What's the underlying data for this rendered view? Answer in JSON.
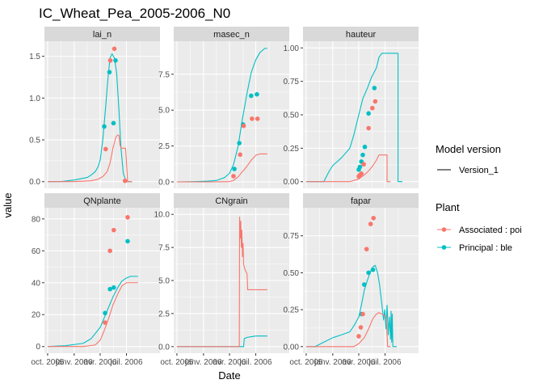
{
  "chart_data": {
    "type": "line",
    "title": "IC_Wheat_Pea_2005-2006_N0",
    "xlabel": "Date",
    "ylabel": "value",
    "x_tick_labels": [
      "oct. 2005",
      "janv. 2006",
      "avr. 2006",
      "juil. 2006"
    ],
    "xlim": [
      "2005-09-20",
      "2006-10-25"
    ],
    "x_ticks": [
      "2005-10-01",
      "2006-01-01",
      "2006-04-01",
      "2006-07-01"
    ],
    "colors": {
      "associated": "#F8766D",
      "principal": "#00BFC4",
      "panel": "#EBEBEB",
      "strip": "#D9D9D9"
    },
    "legend": {
      "position": "right",
      "model_version": {
        "title": "Model version",
        "items": [
          "Version_1"
        ]
      },
      "plant": {
        "title": "Plant",
        "items": [
          "Associated : poi",
          "Principal : ble"
        ]
      }
    },
    "panels": [
      {
        "name": "lai_n",
        "ylim": [
          -0.08,
          1.68
        ],
        "yticks": [
          0.0,
          0.5,
          1.0,
          1.5
        ],
        "ytick_labels": [
          "0.0",
          "0.5",
          "1.0",
          "1.5"
        ],
        "series": [
          {
            "kind": "line",
            "plant": "Principal : ble",
            "x": [
              "2005-10-01",
              "2005-11-15",
              "2006-01-01",
              "2006-02-15",
              "2006-03-01",
              "2006-03-15",
              "2006-03-25",
              "2006-04-01",
              "2006-04-10",
              "2006-04-20",
              "2006-04-27",
              "2006-05-05",
              "2006-05-12",
              "2006-05-20",
              "2006-05-28",
              "2006-06-05",
              "2006-06-12",
              "2006-06-20",
              "2006-06-30",
              "2006-07-20"
            ],
            "y": [
              0,
              0,
              0.02,
              0.05,
              0.08,
              0.12,
              0.18,
              0.26,
              0.5,
              0.9,
              1.2,
              1.48,
              1.53,
              1.48,
              1.3,
              0.85,
              0.4,
              0.1,
              0,
              0
            ]
          },
          {
            "kind": "line",
            "plant": "Associated : poi",
            "x": [
              "2005-10-01",
              "2006-01-01",
              "2006-03-01",
              "2006-03-25",
              "2006-04-10",
              "2006-04-25",
              "2006-05-05",
              "2006-05-15",
              "2006-05-25",
              "2006-06-01",
              "2006-06-05",
              "2006-06-08",
              "2006-06-12",
              "2006-06-20",
              "2006-06-28",
              "2006-07-05",
              "2006-07-20"
            ],
            "y": [
              0,
              0,
              0.01,
              0.03,
              0.06,
              0.12,
              0.22,
              0.4,
              0.53,
              0.56,
              0.55,
              0.45,
              0.4,
              0.4,
              0.4,
              0.0,
              0
            ]
          },
          {
            "kind": "points",
            "plant": "Principal : ble",
            "x": [
              "2006-04-15",
              "2006-05-03",
              "2006-05-17",
              "2006-05-24"
            ],
            "y": [
              0.66,
              1.31,
              0.7,
              1.45
            ]
          },
          {
            "kind": "points",
            "plant": "Associated : poi",
            "x": [
              "2006-04-20",
              "2006-05-06",
              "2006-05-20",
              "2006-06-26"
            ],
            "y": [
              0.39,
              1.45,
              1.59,
              0.01
            ]
          }
        ]
      },
      {
        "name": "masec_n",
        "ylim": [
          -0.45,
          9.8
        ],
        "yticks": [
          0.0,
          2.5,
          5.0,
          7.5
        ],
        "ytick_labels": [
          "0.0",
          "2.5",
          "5.0",
          "7.5"
        ],
        "series": [
          {
            "kind": "line",
            "plant": "Principal : ble",
            "x": [
              "2005-10-01",
              "2005-12-01",
              "2006-01-15",
              "2006-02-15",
              "2006-03-15",
              "2006-04-01",
              "2006-04-15",
              "2006-05-01",
              "2006-05-15",
              "2006-06-01",
              "2006-06-15",
              "2006-07-01",
              "2006-07-15",
              "2006-08-01",
              "2006-08-10"
            ],
            "y": [
              0,
              0.02,
              0.05,
              0.1,
              0.3,
              0.6,
              1.2,
              2.5,
              4.3,
              6.2,
              7.6,
              8.5,
              9.0,
              9.3,
              9.3
            ]
          },
          {
            "kind": "line",
            "plant": "Associated : poi",
            "x": [
              "2005-10-01",
              "2006-02-01",
              "2006-04-01",
              "2006-04-15",
              "2006-05-01",
              "2006-05-15",
              "2006-06-01",
              "2006-06-15",
              "2006-07-01",
              "2006-07-15",
              "2006-08-10"
            ],
            "y": [
              0,
              0,
              0.02,
              0.1,
              0.35,
              0.7,
              1.1,
              1.5,
              1.85,
              1.95,
              1.95
            ]
          },
          {
            "kind": "points",
            "plant": "Principal : ble",
            "x": [
              "2006-04-18",
              "2006-05-05",
              "2006-05-18",
              "2006-06-15",
              "2006-07-05"
            ],
            "y": [
              0.9,
              2.7,
              4.0,
              6.0,
              6.1
            ]
          },
          {
            "kind": "points",
            "plant": "Associated : poi",
            "x": [
              "2006-04-15",
              "2006-05-08",
              "2006-05-20",
              "2006-06-18",
              "2006-07-07"
            ],
            "y": [
              0.4,
              1.9,
              3.9,
              4.4,
              4.4
            ]
          }
        ]
      },
      {
        "name": "hauteur",
        "ylim": [
          -0.05,
          1.05
        ],
        "yticks": [
          0.0,
          0.25,
          0.5,
          0.75,
          1.0
        ],
        "ytick_labels": [
          "0.00",
          "0.25",
          "0.50",
          "0.75",
          "1.00"
        ],
        "series": [
          {
            "kind": "line",
            "plant": "Principal : ble",
            "x": [
              "2005-10-01",
              "2005-12-01",
              "2005-12-20",
              "2006-01-01",
              "2006-02-01",
              "2006-03-01",
              "2006-03-15",
              "2006-04-01",
              "2006-04-15",
              "2006-05-01",
              "2006-05-15",
              "2006-06-01",
              "2006-06-10",
              "2006-06-20",
              "2006-07-01",
              "2006-07-15",
              "2006-08-15",
              "2006-08-15",
              "2006-08-30"
            ],
            "y": [
              0,
              0,
              0.08,
              0.12,
              0.18,
              0.25,
              0.35,
              0.5,
              0.62,
              0.7,
              0.78,
              0.85,
              0.93,
              0.96,
              0.96,
              0.96,
              0.96,
              0,
              0
            ]
          },
          {
            "kind": "line",
            "plant": "Associated : poi",
            "x": [
              "2005-10-01",
              "2006-03-01",
              "2006-04-01",
              "2006-04-20",
              "2006-05-05",
              "2006-05-20",
              "2006-06-01",
              "2006-06-10",
              "2006-06-20",
              "2006-07-01",
              "2006-07-08",
              "2006-07-08",
              "2006-07-20"
            ],
            "y": [
              0,
              0,
              0.02,
              0.05,
              0.08,
              0.12,
              0.16,
              0.2,
              0.2,
              0.2,
              0.2,
              0,
              0
            ]
          },
          {
            "kind": "points",
            "plant": "Principal : ble",
            "x": [
              "2006-04-01",
              "2006-04-05",
              "2006-04-10",
              "2006-04-15",
              "2006-04-22",
              "2006-05-05",
              "2006-05-25"
            ],
            "y": [
              0.09,
              0.11,
              0.15,
              0.2,
              0.26,
              0.51,
              0.7
            ]
          },
          {
            "kind": "points",
            "plant": "Associated : poi",
            "x": [
              "2006-04-01",
              "2006-04-05",
              "2006-04-10",
              "2006-04-18",
              "2006-05-05",
              "2006-05-18",
              "2006-05-28"
            ],
            "y": [
              0.04,
              0.05,
              0.06,
              0.13,
              0.4,
              0.55,
              0.6
            ]
          }
        ]
      },
      {
        "name": "QNplante",
        "ylim": [
          -4.2,
          87
        ],
        "yticks": [
          0,
          20,
          40,
          60,
          80
        ],
        "ytick_labels": [
          "0",
          "20",
          "40",
          "60",
          "80"
        ],
        "series": [
          {
            "kind": "line",
            "plant": "Principal : ble",
            "x": [
              "2005-10-01",
              "2005-12-01",
              "2006-02-01",
              "2006-03-01",
              "2006-04-01",
              "2006-04-15",
              "2006-05-01",
              "2006-05-15",
              "2006-06-01",
              "2006-06-15",
              "2006-07-01",
              "2006-07-15",
              "2006-08-10"
            ],
            "y": [
              0,
              0.5,
              2,
              5,
              12,
              18,
              25,
              31,
              37,
              41,
              43,
              44,
              44
            ]
          },
          {
            "kind": "line",
            "plant": "Associated : poi",
            "x": [
              "2005-10-01",
              "2006-02-01",
              "2006-03-15",
              "2006-04-01",
              "2006-04-15",
              "2006-05-01",
              "2006-05-15",
              "2006-06-01",
              "2006-06-15",
              "2006-07-01",
              "2006-07-15",
              "2006-08-10"
            ],
            "y": [
              0,
              0,
              1,
              4,
              10,
              18,
              26,
              33,
              38,
              40,
              40,
              40
            ]
          },
          {
            "kind": "points",
            "plant": "Principal : ble",
            "x": [
              "2006-04-18",
              "2006-05-05",
              "2006-05-18",
              "2006-07-05"
            ],
            "y": [
              21,
              36,
              37,
              66
            ]
          },
          {
            "kind": "points",
            "plant": "Associated : poi",
            "x": [
              "2006-04-18",
              "2006-05-05",
              "2006-05-18",
              "2006-07-05"
            ],
            "y": [
              15,
              60,
              73,
              81
            ]
          }
        ]
      },
      {
        "name": "CNgrain",
        "ylim": [
          -0.5,
          10.5
        ],
        "yticks": [
          0.0,
          2.5,
          5.0,
          7.5,
          10.0
        ],
        "ytick_labels": [
          "0.0",
          "2.5",
          "5.0",
          "7.5",
          "10.0"
        ],
        "series": [
          {
            "kind": "line",
            "plant": "Principal : ble",
            "x": [
              "2005-10-01",
              "2006-05-01",
              "2006-05-20",
              "2006-05-22",
              "2006-06-01",
              "2006-06-15",
              "2006-07-01",
              "2006-08-10"
            ],
            "y": [
              0,
              0,
              0,
              0.6,
              0.7,
              0.75,
              0.8,
              0.8
            ]
          },
          {
            "kind": "line",
            "plant": "Associated : poi",
            "x": [
              "2005-10-01",
              "2006-05-01",
              "2006-05-05",
              "2006-05-06",
              "2006-05-08",
              "2006-05-10",
              "2006-05-12",
              "2006-05-14",
              "2006-05-16",
              "2006-05-18",
              "2006-05-20",
              "2006-05-25",
              "2006-06-01",
              "2006-06-03",
              "2006-06-10",
              "2006-07-01",
              "2006-08-10"
            ],
            "y": [
              0,
              0,
              0,
              9.8,
              8.2,
              9.5,
              7.5,
              8.8,
              6.8,
              7.8,
              6.2,
              5.8,
              5.5,
              4.3,
              4.3,
              4.3,
              4.3
            ]
          }
        ]
      },
      {
        "name": "fapar",
        "ylim": [
          -0.045,
          0.94
        ],
        "yticks": [
          0.0,
          0.25,
          0.5,
          0.75
        ],
        "ytick_labels": [
          "0.00",
          "0.25",
          "0.50",
          "0.75"
        ],
        "series": [
          {
            "kind": "line",
            "plant": "Principal : ble",
            "x": [
              "2005-10-01",
              "2005-11-01",
              "2005-12-01",
              "2006-01-01",
              "2006-02-01",
              "2006-03-01",
              "2006-03-15",
              "2006-04-01",
              "2006-04-10",
              "2006-04-20",
              "2006-05-01",
              "2006-05-10",
              "2006-05-20",
              "2006-05-28",
              "2006-06-05",
              "2006-06-12",
              "2006-06-18",
              "2006-06-22",
              "2006-06-26",
              "2006-06-30",
              "2006-07-04",
              "2006-07-08",
              "2006-07-12",
              "2006-07-16",
              "2006-07-20",
              "2006-07-22",
              "2006-07-24",
              "2006-07-26",
              "2006-07-28",
              "2006-08-01",
              "2006-08-10"
            ],
            "y": [
              0,
              0,
              0.03,
              0.06,
              0.08,
              0.1,
              0.14,
              0.2,
              0.28,
              0.38,
              0.45,
              0.5,
              0.54,
              0.55,
              0.5,
              0.42,
              0.32,
              0.25,
              0.18,
              0.25,
              0.12,
              0.28,
              0.08,
              0.2,
              0.05,
              0.24,
              0.03,
              0.22,
              0,
              0,
              0
            ]
          },
          {
            "kind": "line",
            "plant": "Associated : poi",
            "x": [
              "2005-10-01",
              "2006-03-15",
              "2006-04-01",
              "2006-04-20",
              "2006-05-05",
              "2006-05-20",
              "2006-06-01",
              "2006-06-10",
              "2006-06-20",
              "2006-06-30",
              "2006-07-05",
              "2006-07-10",
              "2006-07-20"
            ],
            "y": [
              0,
              0,
              0.02,
              0.06,
              0.12,
              0.19,
              0.22,
              0.23,
              0.22,
              0.21,
              0.2,
              0,
              0
            ]
          },
          {
            "kind": "points",
            "plant": "Principal : ble",
            "x": [
              "2006-04-10",
              "2006-04-20",
              "2006-05-05",
              "2006-05-20"
            ],
            "y": [
              0.22,
              0.42,
              0.5,
              0.52
            ]
          },
          {
            "kind": "points",
            "plant": "Associated : poi",
            "x": [
              "2006-04-01",
              "2006-04-08",
              "2006-04-15",
              "2006-04-28",
              "2006-05-12",
              "2006-05-22"
            ],
            "y": [
              0.07,
              0.13,
              0.22,
              0.66,
              0.83,
              0.87
            ]
          }
        ]
      }
    ]
  }
}
